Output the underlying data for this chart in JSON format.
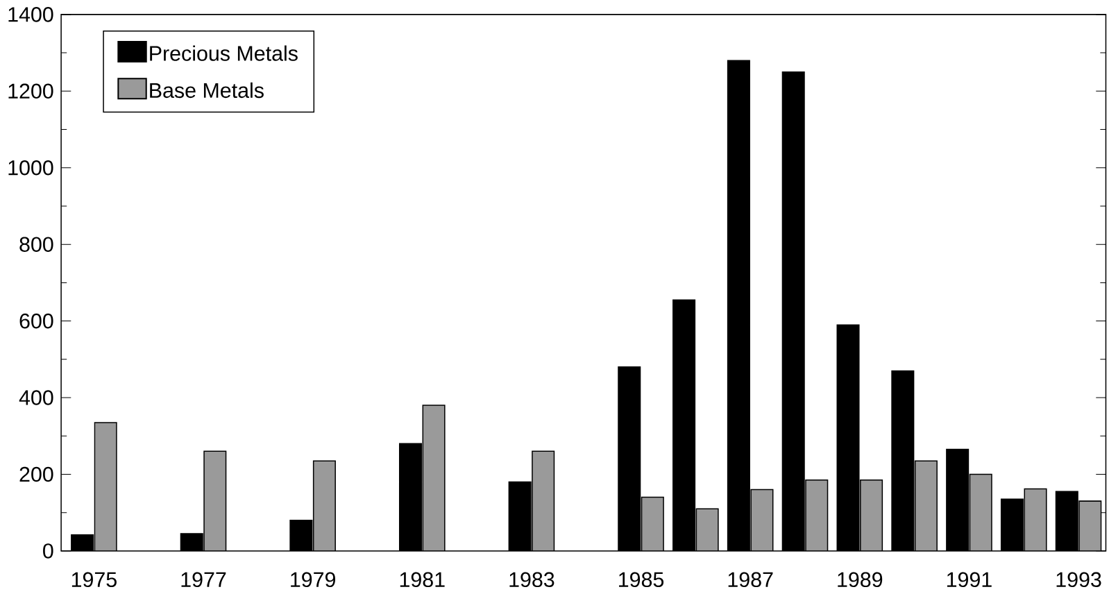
{
  "chart_data": {
    "type": "bar",
    "categories": [
      "1975",
      null,
      "1977",
      null,
      "1979",
      null,
      "1981",
      null,
      "1983",
      null,
      "1985",
      null,
      "1987",
      null,
      "1989",
      null,
      "1991",
      null,
      "1993"
    ],
    "series": [
      {
        "name": "Precious Metals",
        "color": "#000000",
        "values": [
          42,
          null,
          45,
          null,
          80,
          null,
          280,
          null,
          180,
          null,
          480,
          655,
          1280,
          1250,
          590,
          470,
          265,
          135,
          155
        ]
      },
      {
        "name": "Base Metals",
        "color": "#9a9a9a",
        "values": [
          335,
          null,
          260,
          null,
          235,
          null,
          380,
          null,
          260,
          null,
          140,
          110,
          160,
          185,
          185,
          235,
          200,
          162,
          130
        ]
      }
    ],
    "ylim": [
      0,
      1400
    ],
    "yticks": [
      0,
      200,
      400,
      600,
      800,
      1000,
      1200,
      1400
    ],
    "legend": "top left",
    "grid": false
  }
}
